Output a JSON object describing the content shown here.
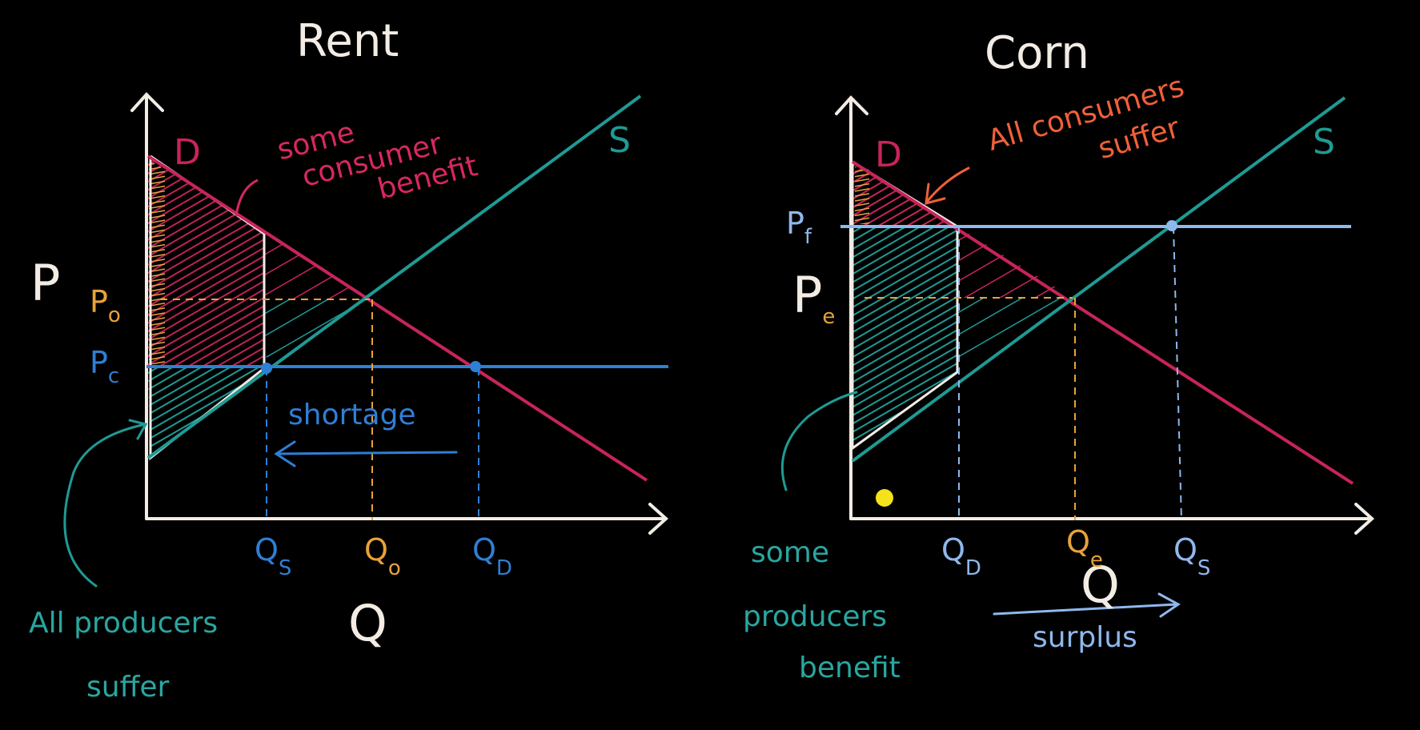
{
  "colors": {
    "background": "#000000",
    "axes": "#f2ece4",
    "demand": "#c8245a",
    "supply": "#1f9a94",
    "ceiling": "#2f7fd4",
    "floor": "#8fb8ec",
    "equilibrium": "#e8a23a",
    "consumer_note": "#d8285e",
    "consumer_note_corn": "#f0603a",
    "producer_note": "#2aa6a0",
    "dot": "#f4e21a"
  },
  "rent": {
    "title": "Rent",
    "p_axis": "P",
    "q_axis": "Q",
    "demand_label": "D",
    "supply_label": "S",
    "p_eq": "P",
    "p_eq_sub": "o",
    "p_control": "P",
    "p_control_sub": "c",
    "q_s": "Q",
    "q_s_sub": "S",
    "q_eq": "Q",
    "q_eq_sub": "o",
    "q_d": "Q",
    "q_d_sub": "D",
    "consumer_note": [
      "some",
      "consumer",
      "benefit"
    ],
    "producer_note": [
      "All producers",
      "suffer"
    ],
    "gap_label": "shortage"
  },
  "corn": {
    "title": "Corn",
    "q_axis": "Q",
    "demand_label": "D",
    "supply_label": "S",
    "p_floor": "P",
    "p_floor_sub": "f",
    "p_eq": "P",
    "p_eq_sub": "e",
    "q_d": "Q",
    "q_d_sub": "D",
    "q_eq": "Q",
    "q_eq_sub": "e",
    "q_s": "Q",
    "q_s_sub": "S",
    "consumer_note": [
      "All consumers",
      "suffer"
    ],
    "producer_note": [
      "some",
      "producers",
      "benefit"
    ],
    "gap_label": "surplus"
  }
}
